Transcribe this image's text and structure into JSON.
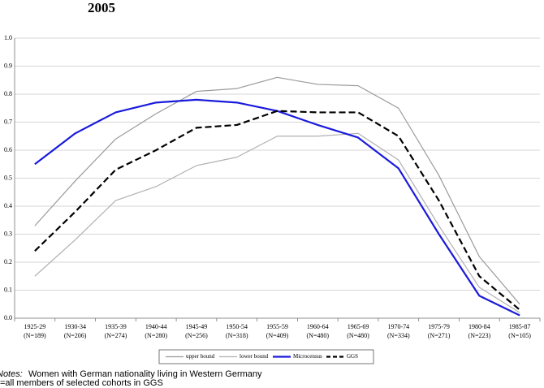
{
  "chart_data": {
    "type": "line",
    "title": "2005",
    "categories": [
      "1925-29",
      "1930-34",
      "1935-39",
      "1940-44",
      "1945-49",
      "1950-54",
      "1955-59",
      "1960-64",
      "1965-69",
      "1970-74",
      "1975-79",
      "1980-84",
      "1985-87"
    ],
    "category_notes": [
      "(N=189)",
      "(N=206)",
      "(N=274)",
      "(N=280)",
      "(N=256)",
      "(N=318)",
      "(N=409)",
      "(N=480)",
      "(N=480)",
      "(N=334)",
      "(N=271)",
      "(N=223)",
      "(N=105)"
    ],
    "series": [
      {
        "name": "upper bound",
        "color": "#9a9a9a",
        "width": 1.2,
        "dashed": false,
        "values": [
          0.33,
          0.49,
          0.64,
          0.73,
          0.81,
          0.82,
          0.86,
          0.835,
          0.83,
          0.75,
          0.51,
          0.22,
          0.05
        ]
      },
      {
        "name": "lower bound",
        "color": "#b0b0b0",
        "width": 1.2,
        "dashed": false,
        "values": [
          0.15,
          0.28,
          0.42,
          0.47,
          0.545,
          0.575,
          0.65,
          0.65,
          0.66,
          0.565,
          0.33,
          0.11,
          0.02
        ]
      },
      {
        "name": "Microcensus",
        "color": "#1a1adc",
        "width": 2.2,
        "dashed": false,
        "values": [
          0.55,
          0.66,
          0.735,
          0.77,
          0.78,
          0.77,
          0.74,
          0.69,
          0.645,
          0.535,
          0.3,
          0.08,
          0.01
        ]
      },
      {
        "name": "GGS",
        "color": "#000000",
        "width": 2.2,
        "dashed": true,
        "values": [
          0.24,
          0.38,
          0.53,
          0.6,
          0.68,
          0.69,
          0.74,
          0.735,
          0.735,
          0.65,
          0.42,
          0.15,
          0.03
        ]
      }
    ],
    "ylim": [
      0,
      1
    ],
    "yticks": [
      {
        "value": 0,
        "label": "0.0"
      },
      0.1,
      0.2,
      0.3,
      0.4,
      0.5,
      0.6,
      0.7,
      0.8,
      0.9,
      {
        "value": 1,
        "label": "1.0"
      }
    ],
    "grid": true,
    "legend": "bottom",
    "notes_label": "Notes:",
    "notes": "Women with German nationality living in Western Germany",
    "footnote": "N=all members of selected cohorts in GGS"
  }
}
